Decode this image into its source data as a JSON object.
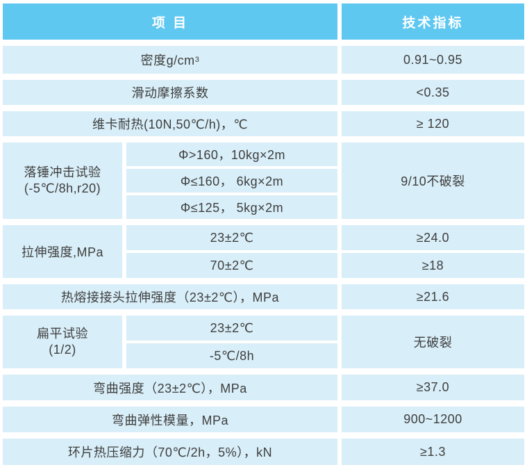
{
  "header": {
    "col1": "项 目",
    "col2": "技术指标"
  },
  "rows": [
    {
      "item": "密度g/cm",
      "item_sup": "3",
      "value": "0.91~0.95"
    },
    {
      "item": "滑动摩擦系数",
      "value": "<0.35"
    },
    {
      "item": "维卡耐热(10N,50℃/h)，℃",
      "value": "≥ 120"
    },
    {
      "label_line1": "落锤冲击试验",
      "label_line2": "(-5℃/8h,r20)",
      "subs": [
        "Φ>160，10kg×2m",
        "Φ≤160， 6kg×2m",
        "Φ≤125， 5kg×2m"
      ],
      "value": "9/10不破裂"
    },
    {
      "label_line1": "拉伸强度,MPa",
      "subs": [
        "23±2℃",
        "70±2℃"
      ],
      "values": [
        "≥24.0",
        "≥18"
      ]
    },
    {
      "item": "热熔接接头拉伸强度（23±2℃），MPa",
      "value": "≥21.6"
    },
    {
      "label_line1": "扁平试验",
      "label_line2": "(1/2)",
      "subs": [
        "23±2℃",
        "-5℃/8h"
      ],
      "value": "无破裂"
    },
    {
      "item": "弯曲强度（23±2℃），MPa",
      "value": "≥37.0"
    },
    {
      "item": "弯曲弹性模量，MPa",
      "value": "900~1200"
    },
    {
      "item": "环片热压缩力（70℃/2h，5%），kN",
      "value": "≥1.3"
    }
  ],
  "colors": {
    "header_bg": "#5FC8F1",
    "row_bg": "#D8EEF8",
    "text": "#3E3E3E",
    "header_text": "#FFFFFF"
  }
}
